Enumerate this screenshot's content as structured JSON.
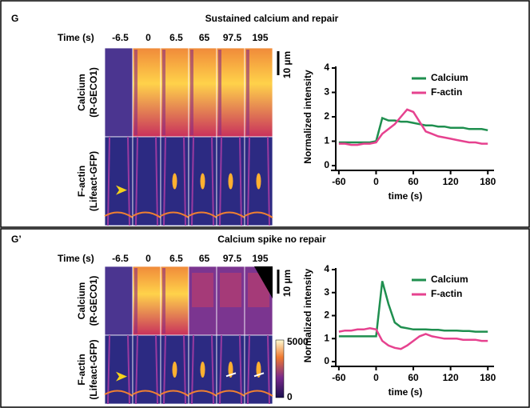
{
  "panels": [
    {
      "label": "G",
      "title": "Sustained calcium and repair",
      "time_label": "Time (s)",
      "times": [
        "-6.5",
        "0",
        "6.5",
        "65",
        "97.5",
        "195"
      ],
      "rows": [
        [
          "Calcium",
          "(R-GECO1)"
        ],
        [
          "F-actin",
          "(Lifeact-GFP)"
        ]
      ],
      "scale_bar": "10 µm"
    },
    {
      "label": "G’",
      "title": "Calcium spike no repair",
      "time_label": "Time (s)",
      "times": [
        "-6.5",
        "0",
        "6.5",
        "65",
        "97.5",
        "195"
      ],
      "rows": [
        [
          "Calcium",
          "(R-GECO1)"
        ],
        [
          "F-actin",
          "(Lifeact-GFP)"
        ]
      ],
      "scale_bar": "10 µm",
      "colorbar": [
        "5000",
        "0"
      ]
    }
  ],
  "chart_data": [
    {
      "type": "line",
      "x_label": "time (s)",
      "y_label": "Normalized intensity",
      "x": [
        -60,
        -50,
        -40,
        -30,
        -20,
        -10,
        0,
        10,
        20,
        30,
        40,
        50,
        60,
        70,
        80,
        90,
        100,
        110,
        120,
        130,
        140,
        150,
        160,
        170,
        180
      ],
      "series": [
        {
          "name": "Calcium",
          "color": "#1f8f4f",
          "values": [
            0.95,
            0.95,
            0.95,
            0.95,
            0.95,
            0.95,
            1.0,
            1.95,
            1.85,
            1.85,
            1.8,
            1.8,
            1.75,
            1.7,
            1.65,
            1.65,
            1.6,
            1.6,
            1.55,
            1.55,
            1.55,
            1.5,
            1.5,
            1.5,
            1.45
          ]
        },
        {
          "name": "F-actin",
          "color": "#e6428f",
          "values": [
            0.9,
            0.9,
            0.85,
            0.85,
            0.9,
            0.9,
            0.95,
            1.3,
            1.5,
            1.7,
            2.0,
            2.3,
            2.2,
            1.8,
            1.4,
            1.3,
            1.2,
            1.15,
            1.1,
            1.05,
            1.0,
            0.95,
            0.95,
            0.9,
            0.9
          ]
        }
      ],
      "xlim": [
        -65,
        190
      ],
      "xticks": [
        -60,
        0,
        60,
        120,
        180
      ],
      "ylim": [
        0,
        4
      ],
      "yticks": [
        0,
        1,
        2,
        3,
        4
      ],
      "legend": "upper right"
    },
    {
      "type": "line",
      "x_label": "time (s)",
      "y_label": "Normalized intensity",
      "x": [
        -60,
        -50,
        -40,
        -30,
        -20,
        -10,
        0,
        10,
        20,
        30,
        40,
        50,
        60,
        70,
        80,
        90,
        100,
        110,
        120,
        130,
        140,
        150,
        160,
        170,
        180
      ],
      "series": [
        {
          "name": "Calcium",
          "color": "#1f8f4f",
          "values": [
            1.1,
            1.1,
            1.1,
            1.1,
            1.1,
            1.1,
            1.1,
            3.5,
            2.5,
            1.7,
            1.5,
            1.45,
            1.4,
            1.4,
            1.4,
            1.38,
            1.38,
            1.35,
            1.35,
            1.35,
            1.33,
            1.33,
            1.3,
            1.3,
            1.3
          ]
        },
        {
          "name": "F-actin",
          "color": "#e6428f",
          "values": [
            1.3,
            1.35,
            1.35,
            1.4,
            1.4,
            1.45,
            1.4,
            0.9,
            0.7,
            0.6,
            0.55,
            0.7,
            0.9,
            1.1,
            1.2,
            1.1,
            1.05,
            1.0,
            1.0,
            1.0,
            0.95,
            0.95,
            0.95,
            0.9,
            0.9
          ]
        }
      ],
      "xlim": [
        -65,
        190
      ],
      "xticks": [
        -60,
        0,
        60,
        120,
        180
      ],
      "ylim": [
        0,
        4
      ],
      "yticks": [
        0,
        1,
        2,
        3,
        4
      ],
      "legend": "upper right"
    }
  ]
}
